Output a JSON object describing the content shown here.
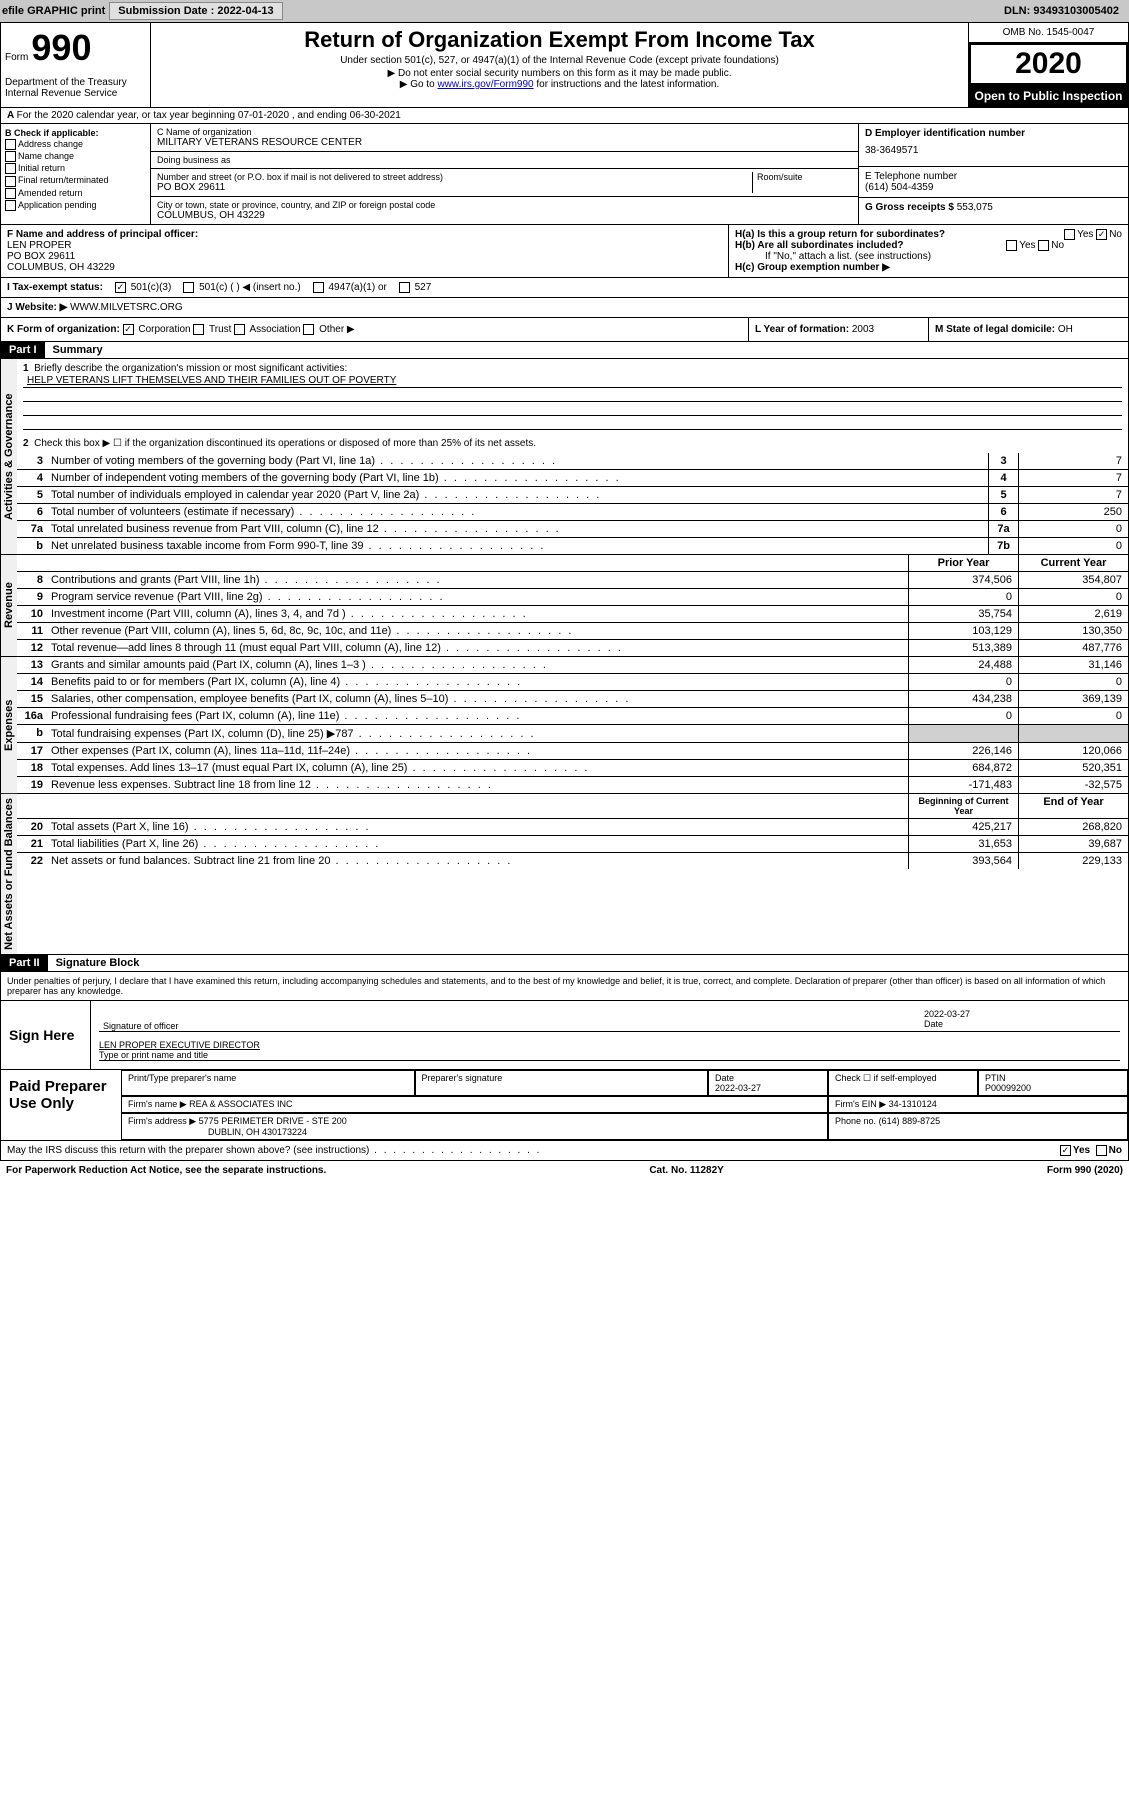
{
  "topbar": {
    "efile": "efile GRAPHIC print",
    "submission_label": "Submission Date :",
    "submission_date": "2022-04-13",
    "dln_label": "DLN:",
    "dln": "93493103005402"
  },
  "header": {
    "form_label": "Form",
    "form_number": "990",
    "dept": "Department of the Treasury\nInternal Revenue Service",
    "title": "Return of Organization Exempt From Income Tax",
    "subtitle": "Under section 501(c), 527, or 4947(a)(1) of the Internal Revenue Code (except private foundations)",
    "note1": "▶ Do not enter social security numbers on this form as it may be made public.",
    "note2_pre": "▶ Go to ",
    "note2_link": "www.irs.gov/Form990",
    "note2_post": " for instructions and the latest information.",
    "omb": "OMB No. 1545-0047",
    "year": "2020",
    "inspect": "Open to Public Inspection"
  },
  "tax_year": "For the 2020 calendar year, or tax year beginning 07-01-2020    , and ending 06-30-2021",
  "section_b": {
    "header": "B Check if applicable:",
    "items": [
      "Address change",
      "Name change",
      "Initial return",
      "Final return/terminated",
      "Amended return",
      "Application pending"
    ]
  },
  "section_c": {
    "name_label": "C Name of organization",
    "name": "MILITARY VETERANS RESOURCE CENTER",
    "dba_label": "Doing business as",
    "dba": "",
    "street_label": "Number and street (or P.O. box if mail is not delivered to street address)",
    "room_label": "Room/suite",
    "street": "PO BOX 29611",
    "city_label": "City or town, state or province, country, and ZIP or foreign postal code",
    "city": "COLUMBUS, OH  43229"
  },
  "section_d": {
    "ein_label": "D Employer identification number",
    "ein": "38-3649571",
    "phone_label": "E Telephone number",
    "phone": "(614) 504-4359",
    "gross_label": "G Gross receipts $",
    "gross": "553,075"
  },
  "section_f": {
    "label": "F  Name and address of principal officer:",
    "name": "LEN PROPER",
    "street": "PO BOX 29611",
    "city": "COLUMBUS, OH  43229"
  },
  "section_h": {
    "h_a": "H(a)  Is this a group return for subordinates?",
    "h_b": "H(b)  Are all subordinates included?",
    "h_b_note": "If \"No,\" attach a list. (see instructions)",
    "h_c": "H(c)  Group exemption number ▶",
    "yes": "Yes",
    "no": "No"
  },
  "tax_status": {
    "label": "I   Tax-exempt status:",
    "opt1": "501(c)(3)",
    "opt2": "501(c) (   ) ◀ (insert no.)",
    "opt3": "4947(a)(1) or",
    "opt4": "527"
  },
  "website": {
    "label": "J   Website: ▶",
    "value": "WWW.MILVETSRC.ORG"
  },
  "k_org": {
    "label": "K Form of organization:",
    "opts": [
      "Corporation",
      "Trust",
      "Association",
      "Other ▶"
    ],
    "year_label": "L Year of formation:",
    "year": "2003",
    "state_label": "M State of legal domicile:",
    "state": "OH"
  },
  "part1": {
    "header": "Part I",
    "title": "Summary",
    "q1": "Briefly describe the organization's mission or most significant activities:",
    "mission": "HELP VETERANS LIFT THEMSELVES AND THEIR FAMILIES OUT OF POVERTY",
    "q2": "Check this box ▶ ☐  if the organization discontinued its operations or disposed of more than 25% of its net assets.",
    "lines_gov": [
      {
        "n": "3",
        "t": "Number of voting members of the governing body (Part VI, line 1a)",
        "box": "3",
        "v": "7"
      },
      {
        "n": "4",
        "t": "Number of independent voting members of the governing body (Part VI, line 1b)",
        "box": "4",
        "v": "7"
      },
      {
        "n": "5",
        "t": "Total number of individuals employed in calendar year 2020 (Part V, line 2a)",
        "box": "5",
        "v": "7"
      },
      {
        "n": "6",
        "t": "Total number of volunteers (estimate if necessary)",
        "box": "6",
        "v": "250"
      },
      {
        "n": "7a",
        "t": "Total unrelated business revenue from Part VIII, column (C), line 12",
        "box": "7a",
        "v": "0"
      },
      {
        "n": "b",
        "t": "Net unrelated business taxable income from Form 990-T, line 39",
        "box": "7b",
        "v": "0"
      }
    ],
    "col_headers": {
      "prior": "Prior Year",
      "current": "Current Year"
    },
    "revenue": [
      {
        "n": "8",
        "t": "Contributions and grants (Part VIII, line 1h)",
        "p": "374,506",
        "c": "354,807"
      },
      {
        "n": "9",
        "t": "Program service revenue (Part VIII, line 2g)",
        "p": "0",
        "c": "0"
      },
      {
        "n": "10",
        "t": "Investment income (Part VIII, column (A), lines 3, 4, and 7d )",
        "p": "35,754",
        "c": "2,619"
      },
      {
        "n": "11",
        "t": "Other revenue (Part VIII, column (A), lines 5, 6d, 8c, 9c, 10c, and 11e)",
        "p": "103,129",
        "c": "130,350"
      },
      {
        "n": "12",
        "t": "Total revenue—add lines 8 through 11 (must equal Part VIII, column (A), line 12)",
        "p": "513,389",
        "c": "487,776"
      }
    ],
    "expenses": [
      {
        "n": "13",
        "t": "Grants and similar amounts paid (Part IX, column (A), lines 1–3 )",
        "p": "24,488",
        "c": "31,146"
      },
      {
        "n": "14",
        "t": "Benefits paid to or for members (Part IX, column (A), line 4)",
        "p": "0",
        "c": "0"
      },
      {
        "n": "15",
        "t": "Salaries, other compensation, employee benefits (Part IX, column (A), lines 5–10)",
        "p": "434,238",
        "c": "369,139"
      },
      {
        "n": "16a",
        "t": "Professional fundraising fees (Part IX, column (A), line 11e)",
        "p": "0",
        "c": "0"
      },
      {
        "n": "b",
        "t": "Total fundraising expenses (Part IX, column (D), line 25) ▶787",
        "p": "",
        "c": "",
        "gray": true
      },
      {
        "n": "17",
        "t": "Other expenses (Part IX, column (A), lines 11a–11d, 11f–24e)",
        "p": "226,146",
        "c": "120,066"
      },
      {
        "n": "18",
        "t": "Total expenses. Add lines 13–17 (must equal Part IX, column (A), line 25)",
        "p": "684,872",
        "c": "520,351"
      },
      {
        "n": "19",
        "t": "Revenue less expenses. Subtract line 18 from line 12",
        "p": "-171,483",
        "c": "-32,575"
      }
    ],
    "balance_headers": {
      "begin": "Beginning of Current Year",
      "end": "End of Year"
    },
    "balance": [
      {
        "n": "20",
        "t": "Total assets (Part X, line 16)",
        "p": "425,217",
        "c": "268,820"
      },
      {
        "n": "21",
        "t": "Total liabilities (Part X, line 26)",
        "p": "31,653",
        "c": "39,687"
      },
      {
        "n": "22",
        "t": "Net assets or fund balances. Subtract line 21 from line 20",
        "p": "393,564",
        "c": "229,133"
      }
    ],
    "side_labels": {
      "gov": "Activities & Governance",
      "rev": "Revenue",
      "exp": "Expenses",
      "bal": "Net Assets or Fund Balances"
    }
  },
  "part2": {
    "header": "Part II",
    "title": "Signature Block",
    "declaration": "Under penalties of perjury, I declare that I have examined this return, including accompanying schedules and statements, and to the best of my knowledge and belief, it is true, correct, and complete. Declaration of preparer (other than officer) is based on all information of which preparer has any knowledge."
  },
  "sign": {
    "label": "Sign Here",
    "sig_of_officer": "Signature of officer",
    "date_label": "Date",
    "date": "2022-03-27",
    "name": "LEN PROPER EXECUTIVE DIRECTOR",
    "name_label": "Type or print name and title"
  },
  "preparer": {
    "label": "Paid Preparer Use Only",
    "print_name_label": "Print/Type preparer's name",
    "sig_label": "Preparer's signature",
    "date_label": "Date",
    "date": "2022-03-27",
    "check_label": "Check ☐ if self-employed",
    "ptin_label": "PTIN",
    "ptin": "P00099200",
    "firm_name_label": "Firm's name     ▶",
    "firm_name": "REA & ASSOCIATES INC",
    "firm_ein_label": "Firm's EIN ▶",
    "firm_ein": "34-1310124",
    "firm_addr_label": "Firm's address ▶",
    "firm_addr1": "5775 PERIMETER DRIVE - STE 200",
    "firm_addr2": "DUBLIN, OH  430173224",
    "phone_label": "Phone no.",
    "phone": "(614) 889-8725"
  },
  "discuss": {
    "text": "May the IRS discuss this return with the preparer shown above? (see instructions)",
    "yes": "Yes",
    "no": "No"
  },
  "footer": {
    "paperwork": "For Paperwork Reduction Act Notice, see the separate instructions.",
    "catno": "Cat. No. 11282Y",
    "form": "Form 990 (2020)"
  }
}
